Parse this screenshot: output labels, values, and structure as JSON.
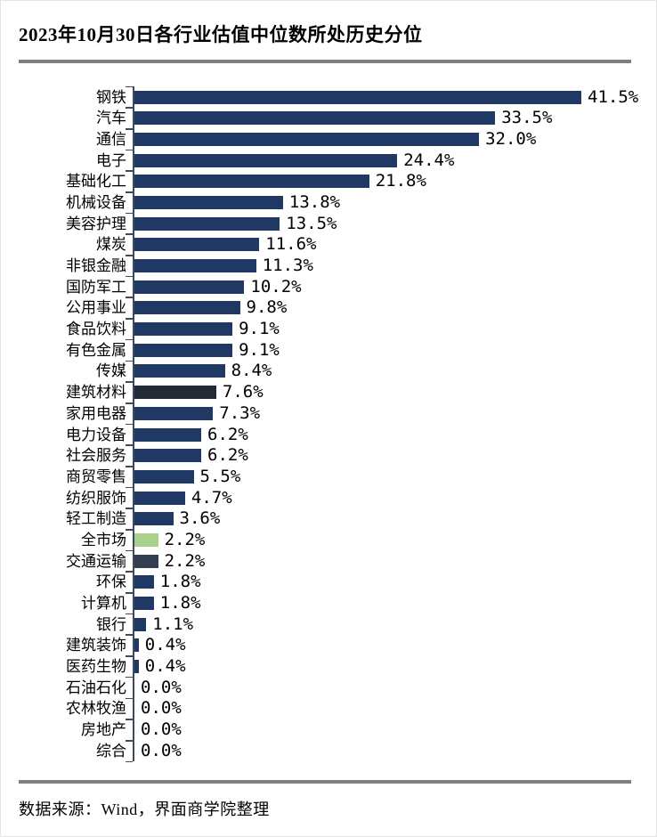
{
  "title": "2023年10月30日各行业估值中位数所处历史分位",
  "footer": "数据来源：Wind，界面商学院整理",
  "colors": {
    "bar_default": "#1F3864",
    "bar_dark_highlight": "#222A35",
    "bar_market_green": "#A9D18E",
    "bar_transport_slate": "#333F50",
    "axis": "#3d4a5c",
    "divider": "#7f7f7f"
  },
  "chart_data": {
    "type": "bar",
    "orientation": "horizontal",
    "title": "2023年10月30日各行业估值中位数所处历史分位",
    "xlabel": "",
    "ylabel": "",
    "xlim": [
      0,
      45
    ],
    "grid": false,
    "legend": "none",
    "value_suffix": "%",
    "default_color": "#1F3864",
    "bars": [
      {
        "label": "钢铁",
        "value": 41.5
      },
      {
        "label": "汽车",
        "value": 33.5
      },
      {
        "label": "通信",
        "value": 32.0
      },
      {
        "label": "电子",
        "value": 24.4
      },
      {
        "label": "基础化工",
        "value": 21.8
      },
      {
        "label": "机械设备",
        "value": 13.8
      },
      {
        "label": "美容护理",
        "value": 13.5
      },
      {
        "label": "煤炭",
        "value": 11.6
      },
      {
        "label": "非银金融",
        "value": 11.3
      },
      {
        "label": "国防军工",
        "value": 10.2
      },
      {
        "label": "公用事业",
        "value": 9.8
      },
      {
        "label": "食品饮料",
        "value": 9.1
      },
      {
        "label": "有色金属",
        "value": 9.1
      },
      {
        "label": "传媒",
        "value": 8.4
      },
      {
        "label": "建筑材料",
        "value": 7.6,
        "color": "#222A35"
      },
      {
        "label": "家用电器",
        "value": 7.3
      },
      {
        "label": "电力设备",
        "value": 6.2
      },
      {
        "label": "社会服务",
        "value": 6.2
      },
      {
        "label": "商贸零售",
        "value": 5.5
      },
      {
        "label": "纺织服饰",
        "value": 4.7
      },
      {
        "label": "轻工制造",
        "value": 3.6
      },
      {
        "label": "全市场",
        "value": 2.2,
        "color": "#A9D18E"
      },
      {
        "label": "交通运输",
        "value": 2.2,
        "color": "#333F50"
      },
      {
        "label": "环保",
        "value": 1.8
      },
      {
        "label": "计算机",
        "value": 1.8
      },
      {
        "label": "银行",
        "value": 1.1
      },
      {
        "label": "建筑装饰",
        "value": 0.4
      },
      {
        "label": "医药生物",
        "value": 0.4
      },
      {
        "label": "石油石化",
        "value": 0.0
      },
      {
        "label": "农林牧渔",
        "value": 0.0
      },
      {
        "label": "房地产",
        "value": 0.0
      },
      {
        "label": "综合",
        "value": 0.0
      }
    ]
  }
}
